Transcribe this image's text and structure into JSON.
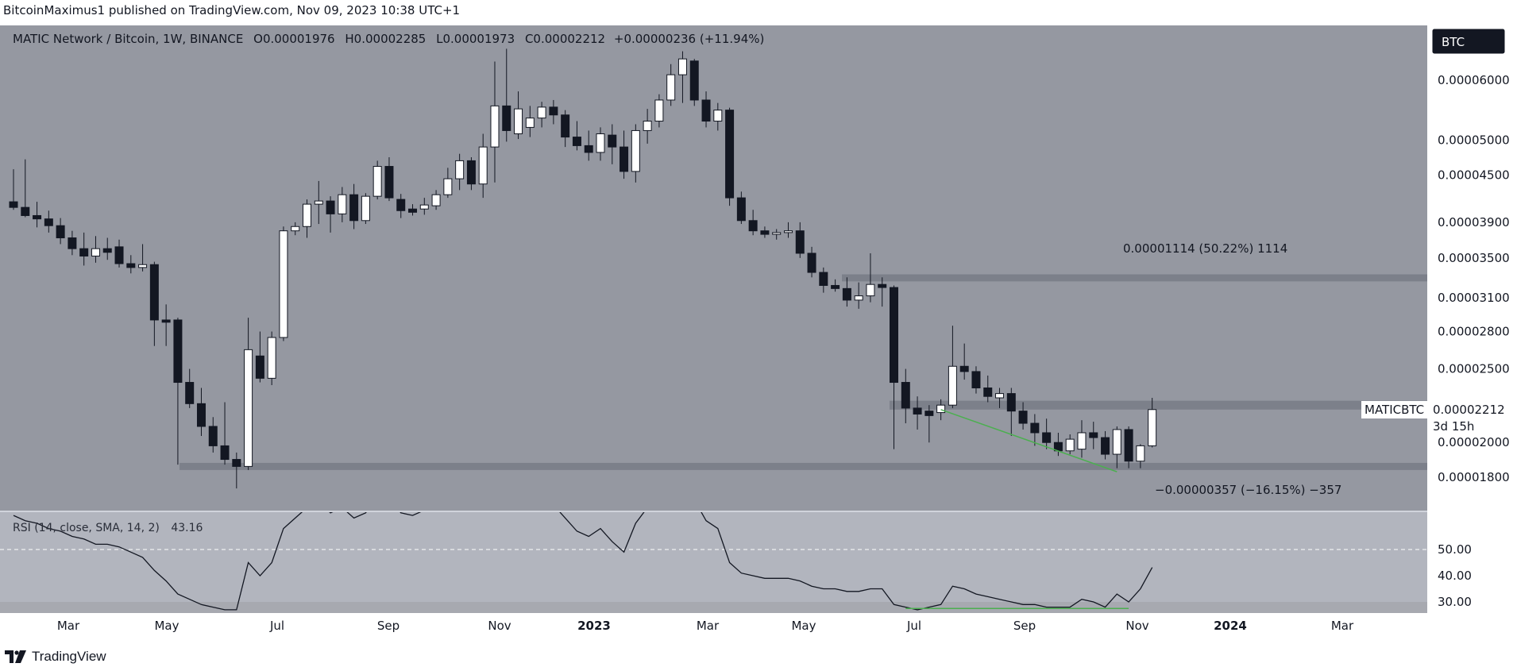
{
  "header": {
    "text": "BitcoinMaximus1 published on TradingView.com, Nov 09, 2023 10:38 UTC+1"
  },
  "footer": {
    "brand": "TradingView"
  },
  "legend": {
    "symbol": "MATIC Network / Bitcoin, 1W, BINANCE",
    "o_label": "O",
    "o_value": "0.00001976",
    "h_label": "H",
    "h_value": "0.00002285",
    "l_label": "L",
    "l_value": "0.00001973",
    "c_label": "C",
    "c_value": "0.00002212",
    "change": "+0.00000236 (+11.94%)"
  },
  "currency_badge": "BTC",
  "last_price": {
    "ticker": "MATICBTC",
    "value": "0.00002212",
    "countdown": "3d 15h"
  },
  "annotations": {
    "upper_measure": "0.00001114 (50.22%) 1114",
    "lower_measure": "−0.00000357 (−16.15%) −357"
  },
  "rsi_label": {
    "text": "RSI (14, close, SMA, 14, 2)",
    "value": "43.16"
  },
  "colors": {
    "price_pane_bg": "#9598a1",
    "rsi_pane_bg": "#a7a9b0",
    "rsi_band_bg": "#b2b5be",
    "candle_up": "#ffffff",
    "candle_down": "#131722",
    "trendline": "#4caf50",
    "zone": "#787b86"
  },
  "chart_data": [
    {
      "type": "candlestick",
      "pair": "MATIC Network / Bitcoin",
      "interval": "1W",
      "exchange": "BINANCE",
      "y_scale": "log",
      "y_ticks": [
        "0.00006000",
        "0.00005000",
        "0.00004500",
        "0.00003900",
        "0.00003500",
        "0.00003100",
        "0.00002800",
        "0.00002500",
        "0.00002000",
        "0.00001800"
      ],
      "x_ticks": [
        "Mar",
        "May",
        "Jul",
        "Sep",
        "Nov",
        "2023",
        "Mar",
        "May",
        "Jul",
        "Sep",
        "Nov",
        "2024",
        "Mar"
      ],
      "ohlc": [
        [
          4.15e-05,
          4.58e-05,
          4.05e-05,
          4.08e-05
        ],
        [
          4.08e-05,
          4.72e-05,
          3.96e-05,
          3.98e-05
        ],
        [
          3.98e-05,
          4.15e-05,
          3.84e-05,
          3.94e-05
        ],
        [
          3.94e-05,
          4.04e-05,
          3.78e-05,
          3.86e-05
        ],
        [
          3.86e-05,
          3.95e-05,
          3.65e-05,
          3.72e-05
        ],
        [
          3.72e-05,
          3.8e-05,
          3.53e-05,
          3.6e-05
        ],
        [
          3.6e-05,
          3.78e-05,
          3.42e-05,
          3.52e-05
        ],
        [
          3.52e-05,
          3.74e-05,
          3.45e-05,
          3.6e-05
        ],
        [
          3.6e-05,
          3.72e-05,
          3.48e-05,
          3.56e-05
        ],
        [
          3.62e-05,
          3.7e-05,
          3.4e-05,
          3.44e-05
        ],
        [
          3.44e-05,
          3.53e-05,
          3.34e-05,
          3.4e-05
        ],
        [
          3.4e-05,
          3.65e-05,
          3.36e-05,
          3.43e-05
        ],
        [
          3.43e-05,
          3.46e-05,
          2.68e-05,
          2.9e-05
        ],
        [
          2.9e-05,
          3.04e-05,
          2.68e-05,
          2.88e-05
        ],
        [
          2.9e-05,
          2.92e-05,
          1.87e-05,
          2.4e-05
        ],
        [
          2.4e-05,
          2.5e-05,
          2.22e-05,
          2.25e-05
        ],
        [
          2.25e-05,
          2.36e-05,
          2.04e-05,
          2.1e-05
        ],
        [
          2.1e-05,
          2.16e-05,
          1.94e-05,
          1.98e-05
        ],
        [
          1.98e-05,
          2.26e-05,
          1.87e-05,
          1.9e-05
        ],
        [
          1.9e-05,
          1.94e-05,
          1.74e-05,
          1.86e-05
        ],
        [
          1.86e-05,
          2.92e-05,
          1.84e-05,
          2.65e-05
        ],
        [
          2.6e-05,
          2.8e-05,
          2.4e-05,
          2.43e-05
        ],
        [
          2.43e-05,
          2.8e-05,
          2.38e-05,
          2.75e-05
        ],
        [
          2.75e-05,
          3.85e-05,
          2.72e-05,
          3.8e-05
        ],
        [
          3.8e-05,
          3.9e-05,
          3.75e-05,
          3.85e-05
        ],
        [
          3.85e-05,
          4.18e-05,
          3.72e-05,
          4.12e-05
        ],
        [
          4.12e-05,
          4.42e-05,
          3.88e-05,
          4.16e-05
        ],
        [
          4.16e-05,
          4.22e-05,
          3.78e-05,
          4e-05
        ],
        [
          4e-05,
          4.34e-05,
          3.9e-05,
          4.24e-05
        ],
        [
          4.24e-05,
          4.38e-05,
          3.82e-05,
          3.92e-05
        ],
        [
          3.92e-05,
          4.26e-05,
          3.88e-05,
          4.22e-05
        ],
        [
          4.22e-05,
          4.7e-05,
          4.18e-05,
          4.62e-05
        ],
        [
          4.62e-05,
          4.75e-05,
          4.16e-05,
          4.2e-05
        ],
        [
          4.18e-05,
          4.25e-05,
          3.95e-05,
          4.04e-05
        ],
        [
          4.06e-05,
          4.12e-05,
          3.98e-05,
          4.02e-05
        ],
        [
          4.06e-05,
          4.2e-05,
          3.99e-05,
          4.11e-05
        ],
        [
          4.1e-05,
          4.3e-05,
          4.05e-05,
          4.24e-05
        ],
        [
          4.24e-05,
          4.6e-05,
          4.2e-05,
          4.45e-05
        ],
        [
          4.45e-05,
          4.8e-05,
          4.3e-05,
          4.7e-05
        ],
        [
          4.7e-05,
          4.75e-05,
          4.3e-05,
          4.38e-05
        ],
        [
          4.38e-05,
          5.1e-05,
          4.2e-05,
          4.9e-05
        ],
        [
          4.9e-05,
          6.35e-05,
          4.4e-05,
          5.55e-05
        ],
        [
          5.55e-05,
          6.6e-05,
          4.98e-05,
          5.15e-05
        ],
        [
          5.1e-05,
          5.8e-05,
          5.02e-05,
          5.5e-05
        ],
        [
          5.2e-05,
          5.55e-05,
          5.05e-05,
          5.35e-05
        ],
        [
          5.35e-05,
          5.62e-05,
          5.2e-05,
          5.53e-05
        ],
        [
          5.53e-05,
          5.65e-05,
          5.25e-05,
          5.4e-05
        ],
        [
          5.4e-05,
          5.48e-05,
          4.9e-05,
          5.05e-05
        ],
        [
          5.05e-05,
          5.3e-05,
          4.85e-05,
          4.92e-05
        ],
        [
          4.92e-05,
          5.15e-05,
          4.7e-05,
          4.82e-05
        ],
        [
          4.82e-05,
          5.2e-05,
          4.7e-05,
          5.1e-05
        ],
        [
          5.08e-05,
          5.25e-05,
          4.65e-05,
          4.9e-05
        ],
        [
          4.9e-05,
          5.15e-05,
          4.45e-05,
          4.55e-05
        ],
        [
          4.55e-05,
          5.25e-05,
          4.4e-05,
          5.15e-05
        ],
        [
          5.15e-05,
          5.5e-05,
          4.95e-05,
          5.3e-05
        ],
        [
          5.3e-05,
          5.75e-05,
          5.2e-05,
          5.65e-05
        ],
        [
          5.65e-05,
          6.3e-05,
          5.55e-05,
          6.1e-05
        ],
        [
          6.1e-05,
          6.55e-05,
          5.6e-05,
          6.4e-05
        ],
        [
          6.36e-05,
          6.4e-05,
          5.55e-05,
          5.65e-05
        ],
        [
          5.65e-05,
          5.8e-05,
          5.2e-05,
          5.3e-05
        ],
        [
          5.3e-05,
          5.6e-05,
          5.15e-05,
          5.48e-05
        ],
        [
          5.48e-05,
          5.52e-05,
          4.1e-05,
          4.2e-05
        ],
        [
          4.2e-05,
          4.28e-05,
          3.88e-05,
          3.92e-05
        ],
        [
          3.92e-05,
          4.05e-05,
          3.75e-05,
          3.8e-05
        ],
        [
          3.8e-05,
          3.85e-05,
          3.72e-05,
          3.76e-05
        ],
        [
          3.76e-05,
          3.82e-05,
          3.7e-05,
          3.78e-05
        ],
        [
          3.78e-05,
          3.9e-05,
          3.72e-05,
          3.8e-05
        ],
        [
          3.8e-05,
          3.9e-05,
          3.5e-05,
          3.55e-05
        ],
        [
          3.55e-05,
          3.62e-05,
          3.3e-05,
          3.35e-05
        ],
        [
          3.35e-05,
          3.4e-05,
          3.15e-05,
          3.22e-05
        ],
        [
          3.22e-05,
          3.28e-05,
          3.16e-05,
          3.19e-05
        ],
        [
          3.19e-05,
          3.3e-05,
          3.02e-05,
          3.08e-05
        ],
        [
          3.08e-05,
          3.25e-05,
          3e-05,
          3.12e-05
        ],
        [
          3.12e-05,
          3.55e-05,
          3.06e-05,
          3.23e-05
        ],
        [
          3.23e-05,
          3.3e-05,
          3.02e-05,
          3.2e-05
        ],
        [
          3.2e-05,
          3.22e-05,
          1.96e-05,
          2.4e-05
        ],
        [
          2.4e-05,
          2.5e-05,
          2.12e-05,
          2.22e-05
        ],
        [
          2.22e-05,
          2.3e-05,
          2.08e-05,
          2.18e-05
        ],
        [
          2.2e-05,
          2.24e-05,
          2e-05,
          2.17e-05
        ],
        [
          2.19e-05,
          2.28e-05,
          2.14e-05,
          2.24e-05
        ],
        [
          2.24e-05,
          2.85e-05,
          2.22e-05,
          2.52e-05
        ],
        [
          2.52e-05,
          2.7e-05,
          2.42e-05,
          2.48e-05
        ],
        [
          2.48e-05,
          2.52e-05,
          2.32e-05,
          2.36e-05
        ],
        [
          2.36e-05,
          2.45e-05,
          2.26e-05,
          2.3e-05
        ],
        [
          2.29e-05,
          2.36e-05,
          2.22e-05,
          2.32e-05
        ],
        [
          2.32e-05,
          2.36e-05,
          2.04e-05,
          2.2e-05
        ],
        [
          2.2e-05,
          2.26e-05,
          2.08e-05,
          2.12e-05
        ],
        [
          2.12e-05,
          2.18e-05,
          1.98e-05,
          2.06e-05
        ],
        [
          2.06e-05,
          2.15e-05,
          1.96e-05,
          2e-05
        ],
        [
          2e-05,
          2.06e-05,
          1.92e-05,
          1.95e-05
        ],
        [
          1.95e-05,
          2.05e-05,
          1.93e-05,
          2.02e-05
        ],
        [
          1.96e-05,
          2.14e-05,
          1.91e-05,
          2.06e-05
        ],
        [
          2.06e-05,
          2.13e-05,
          1.96e-05,
          2.03e-05
        ],
        [
          2.03e-05,
          2.07e-05,
          1.9e-05,
          1.93e-05
        ],
        [
          1.93e-05,
          2.1e-05,
          1.85e-05,
          2.08e-05
        ],
        [
          2.08e-05,
          2.1e-05,
          1.85e-05,
          1.89e-05
        ],
        [
          1.89e-05,
          1.99e-05,
          1.85e-05,
          1.98e-05
        ],
        [
          1.98e-05,
          2.29e-05,
          1.97e-05,
          2.21e-05
        ]
      ],
      "horizontal_zones": [
        {
          "from": 3.26e-05,
          "to": 3.33e-05
        },
        {
          "from": 2.21e-05,
          "to": 2.27e-05
        },
        {
          "from": 1.84e-05,
          "to": 1.88e-05
        }
      ],
      "trendline_price": [
        {
          "x_index": 79,
          "y": 2.21e-05
        },
        {
          "x_index": 94,
          "y": 1.83e-05
        }
      ],
      "rsi": {
        "label": "RSI (14, close, SMA, 14, 2)",
        "last_value": 43.16,
        "y_ticks": [
          "50.00",
          "40.00",
          "30.00"
        ],
        "band": [
          30,
          70
        ],
        "values": [
          63,
          61,
          60,
          58,
          57,
          55,
          54,
          52,
          52,
          51,
          49,
          47,
          42,
          38,
          33,
          31,
          29,
          28,
          27,
          27,
          45,
          40,
          45,
          58,
          62,
          66,
          68,
          64,
          66,
          62,
          64,
          70,
          70,
          64,
          63,
          65,
          67,
          71,
          72,
          66,
          69,
          78,
          74,
          68,
          66,
          68,
          67,
          62,
          57,
          55,
          58,
          53,
          49,
          60,
          66,
          69,
          76,
          78,
          69,
          61,
          58,
          45,
          41,
          40,
          39,
          39,
          39,
          38,
          36,
          35,
          35,
          34,
          34,
          35,
          35,
          29,
          28,
          27,
          28,
          29,
          36,
          35,
          33,
          32,
          31,
          30,
          29,
          29,
          28,
          28,
          28,
          31,
          30,
          28,
          33,
          30,
          35,
          43.16
        ],
        "trendline": [
          {
            "x_index": 76,
            "y": 27.5
          },
          {
            "x_index": 95,
            "y": 27.5
          }
        ]
      }
    }
  ]
}
